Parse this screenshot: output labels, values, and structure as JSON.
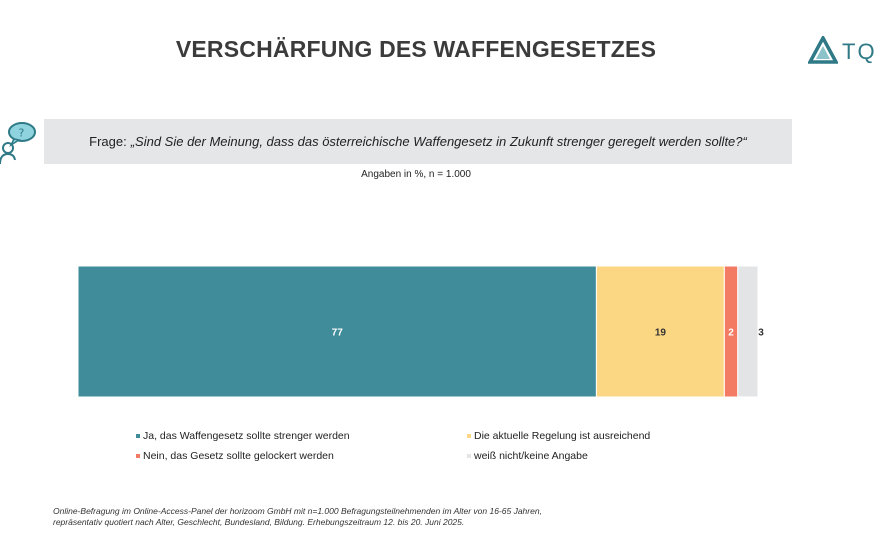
{
  "header": {
    "title": "VERSCHÄRFUNG DES WAFFENGESETZES",
    "logo_text": "TQ"
  },
  "question": {
    "prefix": "Frage:",
    "text": "„Sind Sie der Meinung,  dass das österreichische Waffengesetz in Zukunft strenger geregelt werden  sollte?“"
  },
  "note": "Angaben in %, n = 1.000",
  "colors": {
    "ja": "#418c9b",
    "aktuell": "#fcd783",
    "nein": "#f47b63",
    "weiss_nicht": "#e3e4e6"
  },
  "chart_data": {
    "type": "bar",
    "orientation": "horizontal-stacked",
    "categories": [
      ""
    ],
    "series": [
      {
        "name": "Ja, das Waffengesetz sollte strenger werden",
        "values": [
          77
        ],
        "label": "77",
        "color": "#418c9b"
      },
      {
        "name": "Die aktuelle Regelung ist ausreichend",
        "values": [
          19
        ],
        "label": "19",
        "color": "#fcd783"
      },
      {
        "name": "Nein, das Gesetz sollte gelockert werden",
        "values": [
          2
        ],
        "label": "2",
        "color": "#f47b63"
      },
      {
        "name": "weiß nicht/keine Angabe",
        "values": [
          3
        ],
        "label": "3",
        "color": "#e3e4e6"
      }
    ],
    "xlim": [
      0,
      101
    ],
    "legend_position": "bottom"
  },
  "footer": {
    "line1": "Online-Befragung  im Online-Access-Panel der horizoom  GmbH mit  n=1.000 Befragungsteilnehmenden  im Alter von 16-65 Jahren,",
    "line2": "repräsentativ quotiert nach Alter, Geschlecht, Bundesland, Bildung. Erhebungszeitraum  12. bis 20. Juni 2025."
  }
}
